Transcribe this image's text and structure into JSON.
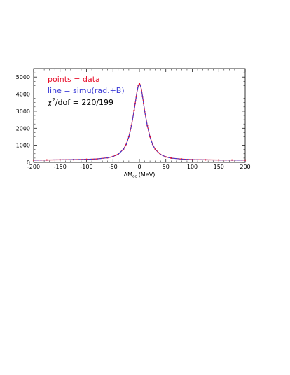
{
  "chart_data": {
    "type": "line",
    "title": "",
    "xlabel": {
      "main": "ΔM",
      "sub": "ee",
      "unit": "(MeV)"
    },
    "ylabel": "",
    "xlim": [
      -200,
      200
    ],
    "ylim": [
      0,
      5500
    ],
    "x_ticks": [
      -200,
      -150,
      -100,
      -50,
      0,
      50,
      100,
      150,
      200
    ],
    "y_ticks": [
      0,
      1000,
      2000,
      3000,
      4000,
      5000
    ],
    "grid": false,
    "legend_position": "top-left",
    "legend": [
      {
        "text": "points = data",
        "color": "#e8112d"
      },
      {
        "text": "line = simu(rad.+B)",
        "color": "#3b3bd6"
      },
      {
        "text_prefix": "χ",
        "text_sup": "2",
        "text_suffix": "/dof = 220/199",
        "color": "#000000"
      }
    ],
    "series": [
      {
        "name": "data",
        "style": "points",
        "color": "#e8112d",
        "x": [
          -200,
          -175,
          -150,
          -125,
          -100,
          -80,
          -60,
          -50,
          -40,
          -30,
          -25,
          -20,
          -15,
          -10,
          -8,
          -6,
          -4,
          -2,
          0,
          2,
          4,
          6,
          8,
          10,
          15,
          20,
          25,
          30,
          40,
          50,
          60,
          80,
          100,
          125,
          150,
          175,
          200
        ],
        "y": [
          130,
          140,
          150,
          160,
          175,
          200,
          270,
          340,
          480,
          780,
          1050,
          1500,
          2150,
          3050,
          3450,
          3850,
          4250,
          4500,
          4620,
          4520,
          4250,
          3850,
          3450,
          3000,
          2150,
          1500,
          1050,
          760,
          460,
          320,
          250,
          190,
          160,
          150,
          140,
          135,
          130
        ]
      },
      {
        "name": "simu",
        "style": "line",
        "color": "#3b3bd6",
        "x": [
          -200,
          -175,
          -150,
          -125,
          -100,
          -80,
          -60,
          -50,
          -40,
          -30,
          -25,
          -20,
          -15,
          -10,
          -8,
          -6,
          -4,
          -2,
          0,
          2,
          4,
          6,
          8,
          10,
          15,
          20,
          25,
          30,
          40,
          50,
          60,
          80,
          100,
          125,
          150,
          175,
          200
        ],
        "y": [
          130,
          140,
          150,
          160,
          175,
          200,
          265,
          335,
          470,
          770,
          1040,
          1490,
          2140,
          3040,
          3440,
          3840,
          4230,
          4470,
          4560,
          4480,
          4230,
          3840,
          3440,
          2990,
          2140,
          1490,
          1040,
          750,
          455,
          318,
          248,
          188,
          158,
          148,
          138,
          133,
          128
        ]
      }
    ]
  }
}
